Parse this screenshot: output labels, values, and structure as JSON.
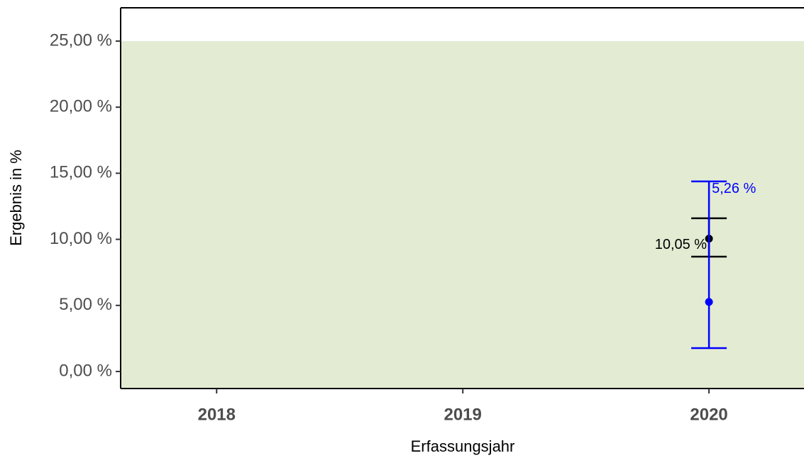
{
  "chart_data": {
    "type": "errorbar",
    "xlabel": "Erfassungsjahr",
    "ylabel": "Ergebnis in %",
    "xlim": [
      2017.61,
      2020.386
    ],
    "xticks": [
      2018,
      2019,
      2020
    ],
    "ylim": [
      -1.29,
      27.52
    ],
    "yticks": [
      {
        "value": 0,
        "label": "0,00 %"
      },
      {
        "value": 5,
        "label": "5,00 %"
      },
      {
        "value": 10,
        "label": "10,00 %"
      },
      {
        "value": 15,
        "label": "15,00 %"
      },
      {
        "value": 20,
        "label": "20,00 %"
      },
      {
        "value": 25,
        "label": "25,00 %"
      }
    ],
    "reference_upper": 25,
    "reference_color": "#e3ecd3",
    "series": [
      {
        "color": "#000000",
        "x": [
          2020
        ],
        "values": [
          10.05
        ],
        "lower": [
          8.69
        ],
        "upper": [
          11.59
        ],
        "value_labels": [
          "10,05 %"
        ],
        "label_side": "left"
      },
      {
        "color": "#0000ff",
        "x": [
          2020
        ],
        "values": [
          5.26
        ],
        "lower": [
          1.77
        ],
        "upper": [
          14.38
        ],
        "value_labels": [
          "5,26 %"
        ],
        "label_side": "right"
      }
    ]
  }
}
